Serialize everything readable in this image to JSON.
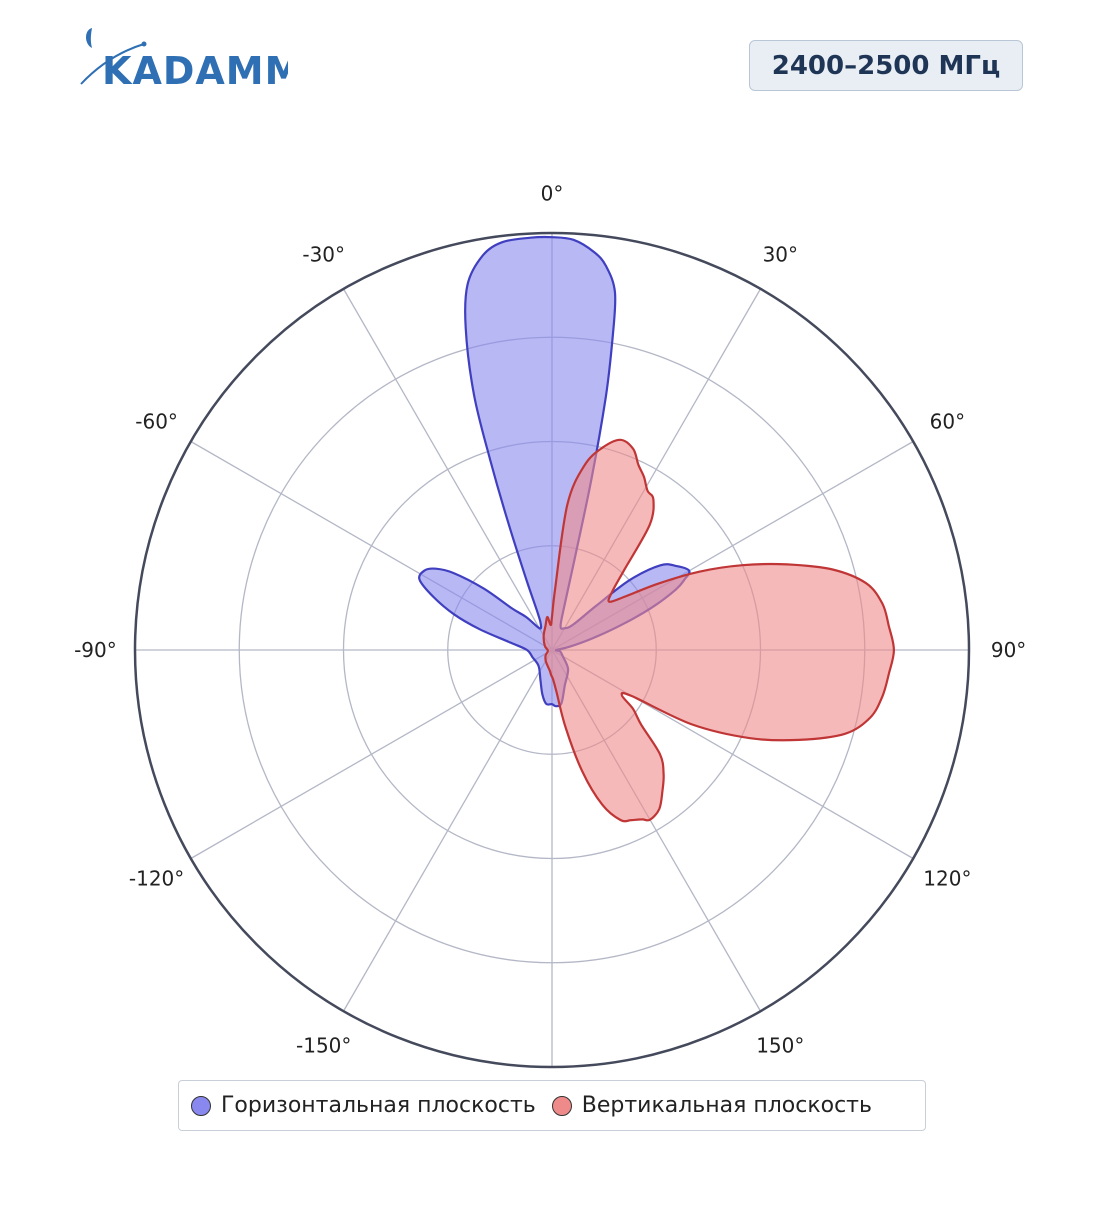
{
  "header": {
    "logo_text": "KADAMM",
    "frequency_badge": "2400–2500 МГц"
  },
  "colors": {
    "horizontal": "#8888ee",
    "vertical": "#ef8a8a",
    "horizontal_stroke": "#3f3fc0",
    "vertical_stroke": "#c03535",
    "brand": "#2f6fb3"
  },
  "chart_data": {
    "type": "polar",
    "angle_direction": "clockwise",
    "zero_at": "top",
    "angular_ticks": [
      {
        "angle": 0,
        "label": "0°"
      },
      {
        "angle": 30,
        "label": "30°"
      },
      {
        "angle": 60,
        "label": "60°"
      },
      {
        "angle": 90,
        "label": "90°"
      },
      {
        "angle": 120,
        "label": "120°"
      },
      {
        "angle": 150,
        "label": "150°"
      },
      {
        "angle": -30,
        "label": "-30°"
      },
      {
        "angle": -60,
        "label": "-60°"
      },
      {
        "angle": -90,
        "label": "-90°"
      },
      {
        "angle": -120,
        "label": "-120°"
      },
      {
        "angle": -150,
        "label": "-150°"
      }
    ],
    "radial_range": [
      0,
      1
    ],
    "radial_gridlines": [
      0.25,
      0.5,
      0.75,
      1.0
    ],
    "radial_tick_labels": false,
    "legend_placement": "bottom",
    "series": [
      {
        "name": "Горизонтальная плоскость",
        "color": "#8888ee",
        "points": [
          [
            0,
            0.99
          ],
          [
            3,
            0.985
          ],
          [
            6,
            0.96
          ],
          [
            8,
            0.93
          ],
          [
            10,
            0.87
          ],
          [
            11,
            0.76
          ],
          [
            12,
            0.62
          ],
          [
            13,
            0.42
          ],
          [
            14,
            0.22
          ],
          [
            16,
            0.1
          ],
          [
            20,
            0.06
          ],
          [
            30,
            0.06
          ],
          [
            40,
            0.08
          ],
          [
            45,
            0.15
          ],
          [
            48,
            0.25
          ],
          [
            52,
            0.33
          ],
          [
            56,
            0.36
          ],
          [
            60,
            0.38
          ],
          [
            62,
            0.36
          ],
          [
            64,
            0.33
          ],
          [
            67,
            0.26
          ],
          [
            70,
            0.18
          ],
          [
            74,
            0.1
          ],
          [
            80,
            0.04
          ],
          [
            90,
            0.01
          ],
          [
            100,
            0.02
          ],
          [
            120,
            0.03
          ],
          [
            140,
            0.06
          ],
          [
            160,
            0.09
          ],
          [
            170,
            0.13
          ],
          [
            176,
            0.135
          ],
          [
            180,
            0.13
          ],
          [
            186,
            0.13
          ],
          [
            192,
            0.11
          ],
          [
            200,
            0.08
          ],
          [
            220,
            0.05
          ],
          [
            250,
            0.05
          ],
          [
            270,
            0.06
          ],
          [
            280,
            0.1
          ],
          [
            286,
            0.18
          ],
          [
            290,
            0.25
          ],
          [
            294,
            0.31
          ],
          [
            298,
            0.36
          ],
          [
            302,
            0.36
          ],
          [
            305,
            0.34
          ],
          [
            308,
            0.3
          ],
          [
            312,
            0.22
          ],
          [
            316,
            0.14
          ],
          [
            322,
            0.1
          ],
          [
            330,
            0.06
          ],
          [
            337,
            0.07
          ],
          [
            339,
            0.1
          ],
          [
            340,
            0.18
          ],
          [
            341,
            0.32
          ],
          [
            342,
            0.48
          ],
          [
            343,
            0.64
          ],
          [
            345,
            0.8
          ],
          [
            347,
            0.9
          ],
          [
            350,
            0.96
          ],
          [
            353,
            0.985
          ],
          [
            357,
            0.99
          ],
          [
            360,
            0.99
          ]
        ]
      },
      {
        "name": "Вертикальная плоскость",
        "color": "#ef8a8a",
        "points": [
          [
            0,
            0.08
          ],
          [
            3,
            0.15
          ],
          [
            6,
            0.35
          ],
          [
            10,
            0.45
          ],
          [
            14,
            0.5
          ],
          [
            18,
            0.53
          ],
          [
            22,
            0.52
          ],
          [
            25,
            0.49
          ],
          [
            28,
            0.47
          ],
          [
            31,
            0.445
          ],
          [
            34,
            0.435
          ],
          [
            38,
            0.38
          ],
          [
            42,
            0.26
          ],
          [
            46,
            0.2
          ],
          [
            50,
            0.18
          ],
          [
            54,
            0.22
          ],
          [
            58,
            0.3
          ],
          [
            62,
            0.4
          ],
          [
            66,
            0.5
          ],
          [
            70,
            0.6
          ],
          [
            74,
            0.7
          ],
          [
            78,
            0.77
          ],
          [
            82,
            0.8
          ],
          [
            86,
            0.81
          ],
          [
            90,
            0.82
          ],
          [
            94,
            0.81
          ],
          [
            98,
            0.8
          ],
          [
            102,
            0.78
          ],
          [
            106,
            0.73
          ],
          [
            110,
            0.63
          ],
          [
            114,
            0.52
          ],
          [
            118,
            0.38
          ],
          [
            120,
            0.22
          ],
          [
            123,
            0.2
          ],
          [
            126,
            0.24
          ],
          [
            130,
            0.28
          ],
          [
            134,
            0.36
          ],
          [
            138,
            0.4
          ],
          [
            142,
            0.43
          ],
          [
            146,
            0.46
          ],
          [
            150,
            0.47
          ],
          [
            152,
            0.46
          ],
          [
            155,
            0.45
          ],
          [
            158,
            0.44
          ],
          [
            162,
            0.39
          ],
          [
            166,
            0.3
          ],
          [
            170,
            0.19
          ],
          [
            174,
            0.1
          ],
          [
            178,
            0.07
          ],
          [
            182,
            0.06
          ],
          [
            186,
            0.05
          ],
          [
            195,
            0.04
          ],
          [
            210,
            0.03
          ],
          [
            230,
            0.02
          ],
          [
            260,
            0.01
          ],
          [
            300,
            0.02
          ],
          [
            330,
            0.04
          ],
          [
            345,
            0.06
          ],
          [
            352,
            0.08
          ],
          [
            357,
            0.06
          ],
          [
            360,
            0.08
          ]
        ]
      }
    ]
  }
}
